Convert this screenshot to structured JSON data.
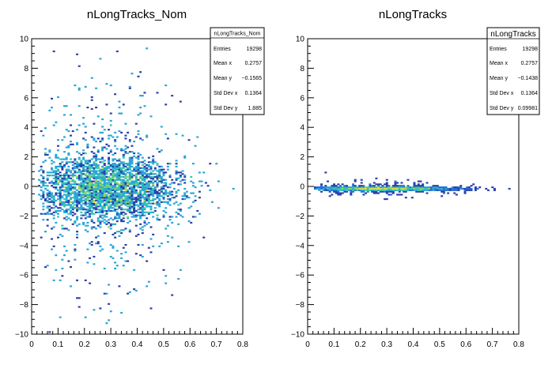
{
  "chart_data": [
    {
      "type": "heatmap",
      "title": "nLongTracks_Nom",
      "xlim": [
        0,
        0.8
      ],
      "ylim": [
        -10,
        10
      ],
      "x_ticks": [
        "0",
        "0.1",
        "0.2",
        "0.3",
        "0.4",
        "0.5",
        "0.6",
        "0.7",
        "0.8"
      ],
      "y_ticks": [
        "−10",
        "−8",
        "−6",
        "−4",
        "−2",
        "0",
        "2",
        "4",
        "6",
        "8",
        "10"
      ],
      "stats": {
        "title": "nLongTracks_Nom",
        "rows": [
          {
            "label": "Entries",
            "value": "19298"
          },
          {
            "label": "Mean x",
            "value": "0.2757"
          },
          {
            "label": "Mean y",
            "value": "−0.1565"
          },
          {
            "label": "Std Dev x",
            "value": "0.1364"
          },
          {
            "label": "Std Dev y",
            "value": "1.885"
          }
        ]
      },
      "distribution": {
        "mean_x": 0.2757,
        "std_x": 0.1364,
        "mean_y": -0.1565,
        "std_y": 1.885
      }
    },
    {
      "type": "heatmap",
      "title": "nLongTracks",
      "xlim": [
        0,
        0.8
      ],
      "ylim": [
        -10,
        10
      ],
      "x_ticks": [
        "0",
        "0.1",
        "0.2",
        "0.3",
        "0.4",
        "0.5",
        "0.6",
        "0.7",
        "0.8"
      ],
      "y_ticks": [
        "−10",
        "−8",
        "−6",
        "−4",
        "−2",
        "0",
        "2",
        "4",
        "6",
        "8",
        "10"
      ],
      "stats": {
        "title": "nLongTracks",
        "rows": [
          {
            "label": "Entries",
            "value": "19298"
          },
          {
            "label": "Mean x",
            "value": "0.2757"
          },
          {
            "label": "Mean y",
            "value": "−0.1438"
          },
          {
            "label": "Std Dev x",
            "value": "0.1364"
          },
          {
            "label": "Std Dev y",
            "value": "0.09981"
          }
        ]
      },
      "distribution": {
        "mean_x": 0.2757,
        "std_x": 0.1364,
        "mean_y": -0.1438,
        "std_y": 0.09981
      }
    }
  ],
  "colors": {
    "palette": [
      "#2c3fa8",
      "#2a6fd2",
      "#2aa6d8",
      "#3cc8a8",
      "#9bd65a",
      "#e8e23a"
    ],
    "axis": "#000000"
  }
}
